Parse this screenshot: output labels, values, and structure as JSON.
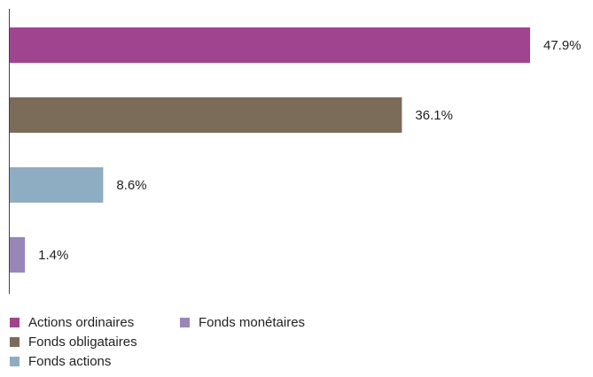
{
  "chart_data": {
    "type": "bar",
    "orientation": "horizontal",
    "categories": [
      "Actions ordinaires",
      "Fonds obligataires",
      "Fonds actions",
      "Fonds monétaires"
    ],
    "values": [
      47.9,
      36.1,
      8.6,
      1.4
    ],
    "value_labels": [
      "47.9%",
      "36.1%",
      "8.6%",
      "1.4%"
    ],
    "colors": [
      "#a0448f",
      "#7b6b59",
      "#8eadc3",
      "#9887b6"
    ],
    "xlim": [
      0,
      50
    ],
    "grid": false,
    "legend_position": "bottom-left"
  },
  "legend": {
    "items": [
      {
        "label": "Actions ordinaires",
        "color": "#a0448f"
      },
      {
        "label": "Fonds obligataires",
        "color": "#7b6b59"
      },
      {
        "label": "Fonds actions",
        "color": "#8eadc3"
      },
      {
        "label": "Fonds monétaires",
        "color": "#9887b6"
      }
    ]
  }
}
